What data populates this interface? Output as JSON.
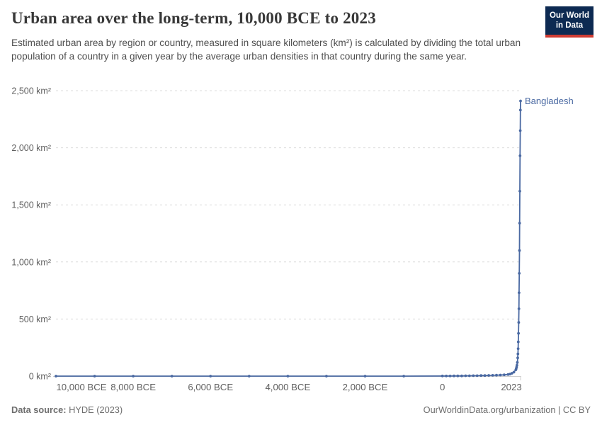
{
  "header": {
    "title": "Urban area over the long-term, 10,000 BCE to 2023",
    "subtitle": "Estimated urban area by region or country, measured in square kilometers (km²) is calculated by dividing the total urban population of a country in a given year by the average urban densities in that country during the same year.",
    "logo": {
      "line1": "Our World",
      "line2": "in Data"
    }
  },
  "footer": {
    "source_label": "Data source:",
    "source_value": " HYDE (2023)",
    "right_text": "OurWorldinData.org/urbanization | CC BY"
  },
  "colors": {
    "series_blue": "#4a69a2",
    "gridline": "#dcdcdc",
    "axis_line": "#cfcfcf",
    "tick_text": "#5f5f5f",
    "logo_navy": "#0d2a52",
    "logo_red": "#cf3b32"
  },
  "chart_data": {
    "type": "line",
    "title": "Urban area over the long-term, 10,000 BCE to 2023",
    "xlabel": "",
    "ylabel": "km²",
    "xlim": [
      -10000,
      2023
    ],
    "ylim": [
      0,
      2500
    ],
    "grid": "dashed-horizontal",
    "legend_position": "end-of-line-label",
    "x_ticks": [
      {
        "year": -10000,
        "label": "10,000 BCE",
        "label_x_override": 115
      },
      {
        "year": -8000,
        "label": "8,000 BCE"
      },
      {
        "year": -6000,
        "label": "6,000 BCE"
      },
      {
        "year": -4000,
        "label": "4,000 BCE"
      },
      {
        "year": -2000,
        "label": "2,000 BCE"
      },
      {
        "year": 0,
        "label": "0"
      },
      {
        "year": 2023,
        "label": "2023",
        "label_x_override": 722,
        "tick_mark": true
      }
    ],
    "y_ticks": [
      {
        "value": 0,
        "label": "0 km²"
      },
      {
        "value": 500,
        "label": "500 km²"
      },
      {
        "value": 1000,
        "label": "1,000 km²"
      },
      {
        "value": 1500,
        "label": "1,500 km²"
      },
      {
        "value": 2000,
        "label": "2,000 km²"
      },
      {
        "value": 2500,
        "label": "2,500 km²"
      }
    ],
    "series": [
      {
        "name": "Bangladesh",
        "color": "#4a69a2",
        "points": [
          [
            -10000,
            0
          ],
          [
            -9000,
            0
          ],
          [
            -8000,
            0
          ],
          [
            -7000,
            0
          ],
          [
            -6000,
            0
          ],
          [
            -5000,
            0
          ],
          [
            -4000,
            0
          ],
          [
            -3000,
            0
          ],
          [
            -2000,
            0
          ],
          [
            -1000,
            0
          ],
          [
            0,
            1
          ],
          [
            100,
            1
          ],
          [
            200,
            1
          ],
          [
            300,
            2
          ],
          [
            400,
            2
          ],
          [
            500,
            2
          ],
          [
            600,
            3
          ],
          [
            700,
            3
          ],
          [
            800,
            4
          ],
          [
            900,
            4
          ],
          [
            1000,
            5
          ],
          [
            1100,
            5
          ],
          [
            1200,
            6
          ],
          [
            1300,
            7
          ],
          [
            1400,
            8
          ],
          [
            1500,
            9
          ],
          [
            1600,
            11
          ],
          [
            1700,
            14
          ],
          [
            1750,
            18
          ],
          [
            1800,
            25
          ],
          [
            1850,
            35
          ],
          [
            1900,
            55
          ],
          [
            1910,
            65
          ],
          [
            1920,
            78
          ],
          [
            1930,
            95
          ],
          [
            1940,
            120
          ],
          [
            1950,
            160
          ],
          [
            1955,
            195
          ],
          [
            1960,
            240
          ],
          [
            1965,
            300
          ],
          [
            1970,
            375
          ],
          [
            1975,
            470
          ],
          [
            1980,
            590
          ],
          [
            1985,
            730
          ],
          [
            1990,
            900
          ],
          [
            1995,
            1100
          ],
          [
            2000,
            1340
          ],
          [
            2005,
            1620
          ],
          [
            2010,
            1930
          ],
          [
            2015,
            2150
          ],
          [
            2020,
            2330
          ],
          [
            2023,
            2410
          ]
        ]
      }
    ]
  }
}
